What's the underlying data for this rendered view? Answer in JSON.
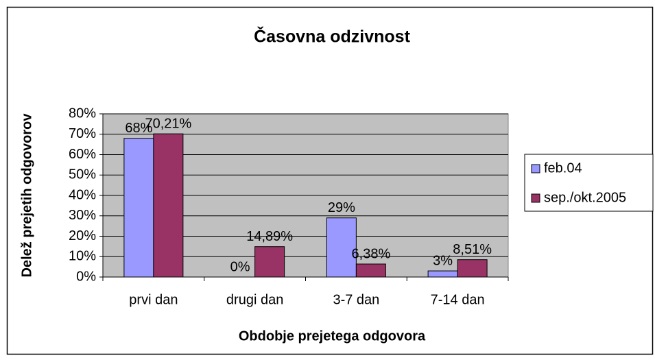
{
  "chart_data": {
    "type": "bar",
    "title": "Časovna odzivnost",
    "x_label": "Obdobje  prejetega odgovora",
    "y_label": "Delež prejetih odgovorov",
    "categories": [
      "prvi dan",
      "drugi dan",
      "3-7 dan",
      "7-14 dan"
    ],
    "series": [
      {
        "name": "feb.04",
        "color": "#9999ff",
        "values": [
          68,
          0,
          29,
          3
        ],
        "value_labels": [
          "68%",
          "0%",
          "29%",
          "3%"
        ]
      },
      {
        "name": "sep./okt.2005",
        "color": "#993366",
        "values": [
          70.21,
          14.89,
          6.38,
          8.51
        ],
        "value_labels": [
          "70,21%",
          "14,89%",
          "6,38%",
          "8,51%"
        ]
      }
    ],
    "ylim": [
      0,
      80
    ],
    "yticks": [
      {
        "value": 0,
        "label": "0%"
      },
      {
        "value": 10,
        "label": "10%"
      },
      {
        "value": 20,
        "label": "20%"
      },
      {
        "value": 30,
        "label": "30%"
      },
      {
        "value": 40,
        "label": "40%"
      },
      {
        "value": 50,
        "label": "50%"
      },
      {
        "value": 60,
        "label": "60%"
      },
      {
        "value": 70,
        "label": "70%"
      },
      {
        "value": 80,
        "label": "80%"
      }
    ],
    "grid": true,
    "legend": "right"
  }
}
